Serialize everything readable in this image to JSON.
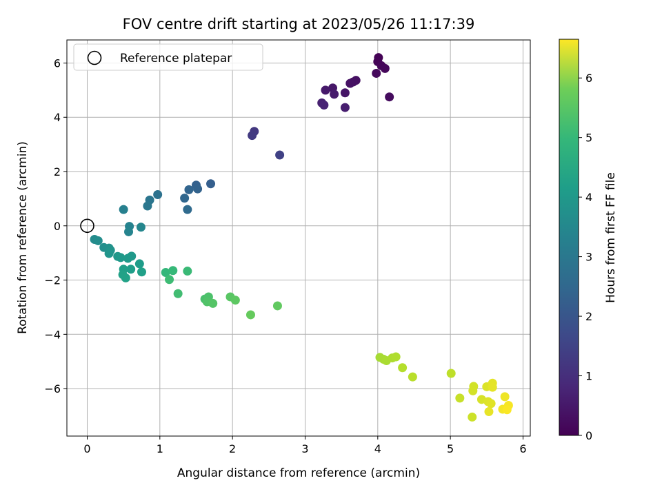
{
  "chart_data": {
    "type": "scatter",
    "title": "FOV centre drift starting at 2023/05/26 11:17:39",
    "xlabel": "Angular distance from reference (arcmin)",
    "ylabel": "Rotation from reference (arcmin)",
    "xlim": [
      -0.28,
      6.1
    ],
    "ylim": [
      -7.75,
      6.85
    ],
    "xticks": [
      0,
      1,
      2,
      3,
      4,
      5,
      6
    ],
    "yticks": [
      -6,
      -4,
      -2,
      0,
      2,
      4,
      6
    ],
    "xtick_labels": [
      "0",
      "1",
      "2",
      "3",
      "4",
      "5",
      "6"
    ],
    "ytick_labels": [
      "−6",
      "−4",
      "−2",
      "0",
      "2",
      "4",
      "6"
    ],
    "grid": true,
    "colormap": "viridis",
    "legend": {
      "placement": "top-left",
      "entries": [
        {
          "label": "Reference platepar",
          "marker": "open-circle",
          "color": "#000000"
        }
      ]
    },
    "reference_point": {
      "x": 0,
      "y": 0
    },
    "colorbar": {
      "label": "Hours from first FF file",
      "range": [
        0,
        6.65
      ],
      "ticks": [
        0,
        1,
        2,
        3,
        4,
        5,
        6
      ],
      "tick_labels": [
        "0",
        "1",
        "2",
        "3",
        "4",
        "5",
        "6"
      ]
    },
    "points": [
      {
        "x": 4.01,
        "y": 6.2,
        "c": 0.02
      },
      {
        "x": 4.0,
        "y": 6.05,
        "c": 0.05
      },
      {
        "x": 4.05,
        "y": 5.9,
        "c": 0.1
      },
      {
        "x": 4.1,
        "y": 5.8,
        "c": 0.12
      },
      {
        "x": 3.98,
        "y": 5.62,
        "c": 0.16
      },
      {
        "x": 4.16,
        "y": 4.75,
        "c": 0.2
      },
      {
        "x": 3.7,
        "y": 5.36,
        "c": 0.28
      },
      {
        "x": 3.66,
        "y": 5.3,
        "c": 0.3
      },
      {
        "x": 3.62,
        "y": 5.25,
        "c": 0.33
      },
      {
        "x": 3.55,
        "y": 4.9,
        "c": 0.38
      },
      {
        "x": 3.38,
        "y": 5.08,
        "c": 0.42
      },
      {
        "x": 3.28,
        "y": 5.0,
        "c": 0.45
      },
      {
        "x": 3.4,
        "y": 4.85,
        "c": 0.5
      },
      {
        "x": 3.55,
        "y": 4.36,
        "c": 0.55
      },
      {
        "x": 3.23,
        "y": 4.53,
        "c": 0.6
      },
      {
        "x": 3.26,
        "y": 4.45,
        "c": 0.65
      },
      {
        "x": 2.3,
        "y": 3.48,
        "c": 1.1
      },
      {
        "x": 2.27,
        "y": 3.33,
        "c": 1.15
      },
      {
        "x": 2.65,
        "y": 2.61,
        "c": 1.3
      },
      {
        "x": 1.7,
        "y": 1.55,
        "c": 2.0
      },
      {
        "x": 1.5,
        "y": 1.5,
        "c": 2.05
      },
      {
        "x": 1.52,
        "y": 1.36,
        "c": 2.1
      },
      {
        "x": 1.4,
        "y": 1.33,
        "c": 2.15
      },
      {
        "x": 1.34,
        "y": 1.02,
        "c": 2.2
      },
      {
        "x": 1.38,
        "y": 0.6,
        "c": 2.3
      },
      {
        "x": 0.97,
        "y": 1.15,
        "c": 2.5
      },
      {
        "x": 0.86,
        "y": 0.95,
        "c": 2.6
      },
      {
        "x": 0.83,
        "y": 0.73,
        "c": 2.65
      },
      {
        "x": 0.5,
        "y": 0.6,
        "c": 2.9
      },
      {
        "x": 0.58,
        "y": -0.02,
        "c": 2.95
      },
      {
        "x": 0.57,
        "y": -0.22,
        "c": 3.0
      },
      {
        "x": 0.74,
        "y": -0.05,
        "c": 3.05
      },
      {
        "x": 0.1,
        "y": -0.5,
        "c": 3.2
      },
      {
        "x": 0.15,
        "y": -0.55,
        "c": 3.25
      },
      {
        "x": 0.23,
        "y": -0.8,
        "c": 3.3
      },
      {
        "x": 0.3,
        "y": -0.82,
        "c": 3.35
      },
      {
        "x": 0.32,
        "y": -0.9,
        "c": 3.4
      },
      {
        "x": 0.3,
        "y": -1.02,
        "c": 3.45
      },
      {
        "x": 0.42,
        "y": -1.13,
        "c": 3.5
      },
      {
        "x": 0.46,
        "y": -1.17,
        "c": 3.55
      },
      {
        "x": 0.61,
        "y": -1.12,
        "c": 3.55
      },
      {
        "x": 0.56,
        "y": -1.2,
        "c": 3.6
      },
      {
        "x": 0.72,
        "y": -1.4,
        "c": 3.65
      },
      {
        "x": 0.6,
        "y": -1.6,
        "c": 3.7
      },
      {
        "x": 0.5,
        "y": -1.6,
        "c": 3.72
      },
      {
        "x": 0.75,
        "y": -1.7,
        "c": 3.75
      },
      {
        "x": 0.49,
        "y": -1.8,
        "c": 3.78
      },
      {
        "x": 0.53,
        "y": -1.92,
        "c": 3.8
      },
      {
        "x": 1.08,
        "y": -1.72,
        "c": 4.4
      },
      {
        "x": 1.18,
        "y": -1.65,
        "c": 4.45
      },
      {
        "x": 1.38,
        "y": -1.67,
        "c": 4.5
      },
      {
        "x": 1.13,
        "y": -1.98,
        "c": 4.55
      },
      {
        "x": 1.25,
        "y": -2.5,
        "c": 4.6
      },
      {
        "x": 1.62,
        "y": -2.7,
        "c": 4.7
      },
      {
        "x": 1.67,
        "y": -2.62,
        "c": 4.75
      },
      {
        "x": 1.65,
        "y": -2.8,
        "c": 4.8
      },
      {
        "x": 1.73,
        "y": -2.86,
        "c": 4.85
      },
      {
        "x": 1.97,
        "y": -2.62,
        "c": 4.9
      },
      {
        "x": 2.04,
        "y": -2.74,
        "c": 4.95
      },
      {
        "x": 2.62,
        "y": -2.95,
        "c": 5.0
      },
      {
        "x": 2.25,
        "y": -3.28,
        "c": 5.05
      },
      {
        "x": 4.03,
        "y": -4.85,
        "c": 5.75
      },
      {
        "x": 4.08,
        "y": -4.92,
        "c": 5.78
      },
      {
        "x": 4.12,
        "y": -4.97,
        "c": 5.8
      },
      {
        "x": 4.2,
        "y": -4.87,
        "c": 5.83
      },
      {
        "x": 4.25,
        "y": -4.83,
        "c": 5.85
      },
      {
        "x": 4.34,
        "y": -5.23,
        "c": 5.9
      },
      {
        "x": 4.48,
        "y": -5.57,
        "c": 5.95
      },
      {
        "x": 5.01,
        "y": -5.44,
        "c": 6.0
      },
      {
        "x": 5.13,
        "y": -6.35,
        "c": 6.1
      },
      {
        "x": 5.3,
        "y": -7.05,
        "c": 6.15
      },
      {
        "x": 5.32,
        "y": -5.92,
        "c": 6.2
      },
      {
        "x": 5.31,
        "y": -6.08,
        "c": 6.22
      },
      {
        "x": 5.43,
        "y": -6.4,
        "c": 6.25
      },
      {
        "x": 5.5,
        "y": -5.93,
        "c": 6.3
      },
      {
        "x": 5.52,
        "y": -6.48,
        "c": 6.32
      },
      {
        "x": 5.56,
        "y": -6.55,
        "c": 6.35
      },
      {
        "x": 5.58,
        "y": -5.8,
        "c": 6.38
      },
      {
        "x": 5.58,
        "y": -5.95,
        "c": 6.4
      },
      {
        "x": 5.53,
        "y": -6.85,
        "c": 6.42
      },
      {
        "x": 5.75,
        "y": -6.3,
        "c": 6.5
      },
      {
        "x": 5.72,
        "y": -6.76,
        "c": 6.55
      },
      {
        "x": 5.8,
        "y": -6.62,
        "c": 6.58
      },
      {
        "x": 5.78,
        "y": -6.78,
        "c": 6.62
      }
    ]
  }
}
